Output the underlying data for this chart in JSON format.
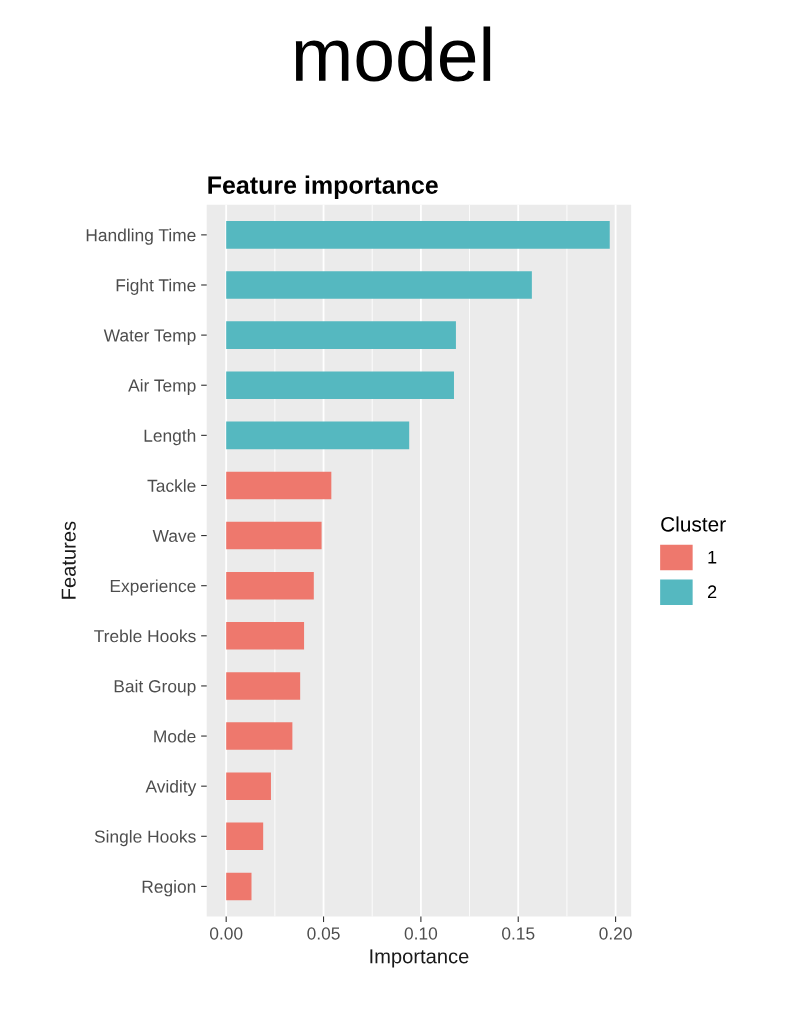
{
  "chart_data": {
    "type": "bar",
    "orientation": "horizontal",
    "title": "model",
    "subtitle": "Feature importance",
    "xlabel": "Importance",
    "ylabel": "Features",
    "legend_title": "Cluster",
    "categories": [
      "Handling Time",
      "Fight Time",
      "Water Temp",
      "Air Temp",
      "Length",
      "Tackle",
      "Wave",
      "Experience",
      "Treble Hooks",
      "Bait Group",
      "Mode",
      "Avidity",
      "Single Hooks",
      "Region"
    ],
    "series": [
      {
        "name": "1",
        "color": "#ee786d",
        "values": [
          null,
          null,
          null,
          null,
          null,
          0.054,
          0.049,
          0.045,
          0.04,
          0.038,
          0.034,
          0.023,
          0.019,
          0.013
        ]
      },
      {
        "name": "2",
        "color": "#55b8c0",
        "values": [
          0.197,
          0.157,
          0.118,
          0.117,
          0.094,
          null,
          null,
          null,
          null,
          null,
          null,
          null,
          null,
          null
        ]
      }
    ],
    "xlim": [
      -0.01,
      0.208
    ],
    "xticks": [
      {
        "value": 0,
        "label": "0.00"
      },
      {
        "value": 0.05,
        "label": "0.05"
      },
      {
        "value": 0.1,
        "label": "0.10"
      },
      {
        "value": 0.15,
        "label": "0.15"
      },
      {
        "value": 0.2,
        "label": "0.20"
      }
    ],
    "grid": "x",
    "legend": "right"
  }
}
